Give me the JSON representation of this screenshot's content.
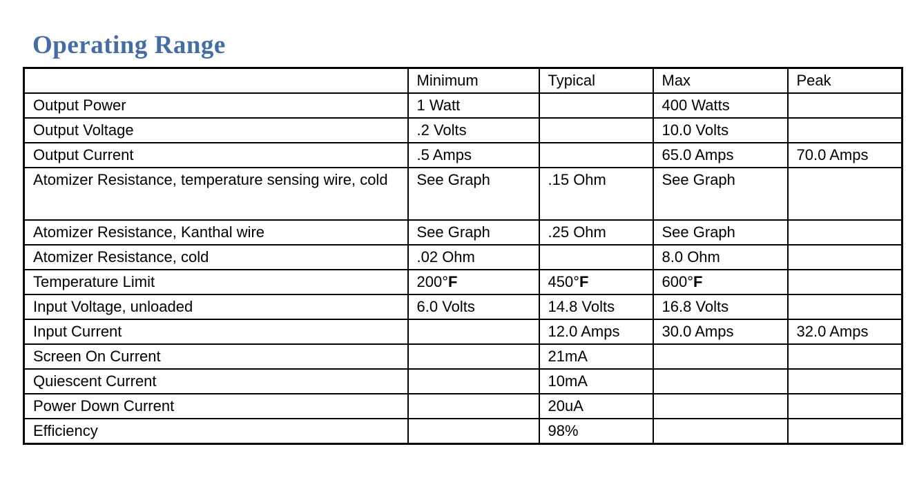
{
  "page": {
    "title": "Operating Range",
    "title_color": "#466CA5"
  },
  "table": {
    "columns": [
      "",
      "Minimum",
      "Typical",
      "Max",
      "Peak"
    ],
    "rows": [
      {
        "label": "Output Power",
        "cells": [
          "1 Watt",
          "",
          "400 Watts",
          ""
        ]
      },
      {
        "label": "Output Voltage",
        "cells": [
          ".2 Volts",
          "",
          "10.0 Volts",
          ""
        ]
      },
      {
        "label": "Output Current",
        "cells": [
          ".5 Amps",
          "",
          "65.0 Amps",
          "70.0 Amps"
        ]
      },
      {
        "label": "Atomizer Resistance, temperature sensing wire, cold",
        "tall": true,
        "cells": [
          "See Graph",
          ".15 Ohm",
          "See Graph",
          ""
        ]
      },
      {
        "label": "Atomizer Resistance, Kanthal wire",
        "cells": [
          "See Graph",
          ".25 Ohm",
          "See Graph",
          ""
        ]
      },
      {
        "label": "Atomizer Resistance, cold",
        "cells": [
          ".02 Ohm",
          "",
          "8.0 Ohm",
          ""
        ]
      },
      {
        "label": "Temperature Limit",
        "cells": [
          {
            "text": "200°",
            "bold_suffix": "F"
          },
          {
            "text": "450°",
            "bold_suffix": "F"
          },
          {
            "text": "600°",
            "bold_suffix": "F"
          },
          ""
        ]
      },
      {
        "label": "Input Voltage, unloaded",
        "cells": [
          "6.0 Volts",
          "14.8 Volts",
          "16.8 Volts",
          ""
        ]
      },
      {
        "label": "Input Current",
        "cells": [
          "",
          "12.0 Amps",
          "30.0 Amps",
          "32.0 Amps"
        ]
      },
      {
        "label": "Screen On Current",
        "cells": [
          "",
          "21mA",
          "",
          ""
        ]
      },
      {
        "label": "Quiescent Current",
        "cells": [
          "",
          "10mA",
          "",
          ""
        ]
      },
      {
        "label": "Power Down Current",
        "cells": [
          "",
          "20uA",
          "",
          ""
        ]
      },
      {
        "label": "Efficiency",
        "cells": [
          "",
          "98%",
          "",
          ""
        ]
      }
    ]
  }
}
